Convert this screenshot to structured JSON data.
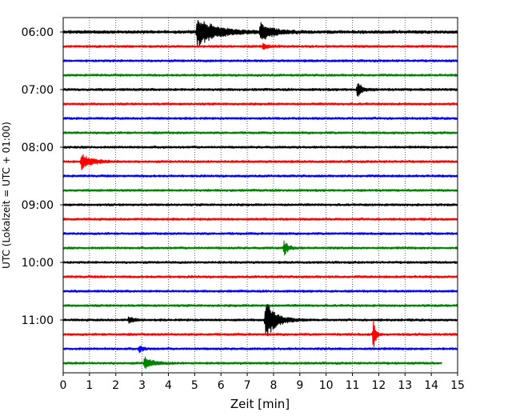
{
  "chart_data": {
    "type": "line",
    "subtype": "helicorder",
    "title": "",
    "xlabel": "Zeit  [min]",
    "ylabel": "UTC (Lokalzeit = UTC + 01:00)",
    "xlim": [
      0,
      15
    ],
    "x_ticks": [
      "0",
      "1",
      "2",
      "3",
      "4",
      "5",
      "6",
      "7",
      "8",
      "9",
      "10",
      "11",
      "12",
      "13",
      "14",
      "15"
    ],
    "y_tick_labels": [
      "06:00",
      "07:00",
      "08:00",
      "09:00",
      "10:00",
      "11:00"
    ],
    "row_interval_min": 15,
    "grid": "vertical dotted lines at each minute",
    "trace_colors": [
      "#000000",
      "#ff0000",
      "#0000ff",
      "#008000"
    ],
    "rows": [
      {
        "start": "06:00",
        "color": "#000000",
        "noise": 0.12,
        "events": [
          {
            "t": 5.1,
            "amp": 1.0,
            "dur": 1.3
          },
          {
            "t": 7.5,
            "amp": 0.6,
            "dur": 0.9
          }
        ]
      },
      {
        "start": "06:15",
        "color": "#ff0000",
        "noise": 0.09,
        "events": [
          {
            "t": 7.6,
            "amp": 0.2,
            "dur": 0.3
          }
        ]
      },
      {
        "start": "06:30",
        "color": "#0000ff",
        "noise": 0.09,
        "events": []
      },
      {
        "start": "06:45",
        "color": "#008000",
        "noise": 0.09,
        "events": []
      },
      {
        "start": "07:00",
        "color": "#000000",
        "noise": 0.1,
        "events": [
          {
            "t": 11.2,
            "amp": 0.6,
            "dur": 0.3
          }
        ]
      },
      {
        "start": "07:15",
        "color": "#ff0000",
        "noise": 0.09,
        "events": []
      },
      {
        "start": "07:30",
        "color": "#0000ff",
        "noise": 0.09,
        "events": []
      },
      {
        "start": "07:45",
        "color": "#008000",
        "noise": 0.09,
        "events": []
      },
      {
        "start": "08:00",
        "color": "#000000",
        "noise": 0.09,
        "events": []
      },
      {
        "start": "08:15",
        "color": "#ff0000",
        "noise": 0.09,
        "events": [
          {
            "t": 0.7,
            "amp": 0.55,
            "dur": 0.7
          }
        ]
      },
      {
        "start": "08:30",
        "color": "#0000ff",
        "noise": 0.09,
        "events": []
      },
      {
        "start": "08:45",
        "color": "#008000",
        "noise": 0.09,
        "events": []
      },
      {
        "start": "09:00",
        "color": "#000000",
        "noise": 0.09,
        "events": []
      },
      {
        "start": "09:15",
        "color": "#ff0000",
        "noise": 0.09,
        "events": []
      },
      {
        "start": "09:30",
        "color": "#0000ff",
        "noise": 0.09,
        "events": []
      },
      {
        "start": "09:45",
        "color": "#008000",
        "noise": 0.09,
        "events": [
          {
            "t": 8.4,
            "amp": 0.5,
            "dur": 0.3
          }
        ]
      },
      {
        "start": "10:00",
        "color": "#000000",
        "noise": 0.09,
        "events": []
      },
      {
        "start": "10:15",
        "color": "#ff0000",
        "noise": 0.09,
        "events": []
      },
      {
        "start": "10:30",
        "color": "#0000ff",
        "noise": 0.09,
        "events": []
      },
      {
        "start": "10:45",
        "color": "#008000",
        "noise": 0.09,
        "events": []
      },
      {
        "start": "11:00",
        "color": "#000000",
        "noise": 0.09,
        "events": [
          {
            "t": 2.5,
            "amp": 0.25,
            "dur": 0.3
          },
          {
            "t": 7.7,
            "amp": 1.4,
            "dur": 0.7
          }
        ]
      },
      {
        "start": "11:15",
        "color": "#ff0000",
        "noise": 0.09,
        "events": [
          {
            "t": 11.8,
            "amp": 1.2,
            "dur": 0.15
          }
        ]
      },
      {
        "start": "11:30",
        "color": "#0000ff",
        "noise": 0.09,
        "events": [
          {
            "t": 2.9,
            "amp": 0.2,
            "dur": 0.3
          }
        ]
      },
      {
        "start": "11:45",
        "color": "#008000",
        "noise": 0.09,
        "end_min": 14.4,
        "events": [
          {
            "t": 3.1,
            "amp": 0.4,
            "dur": 0.6
          }
        ]
      }
    ]
  }
}
